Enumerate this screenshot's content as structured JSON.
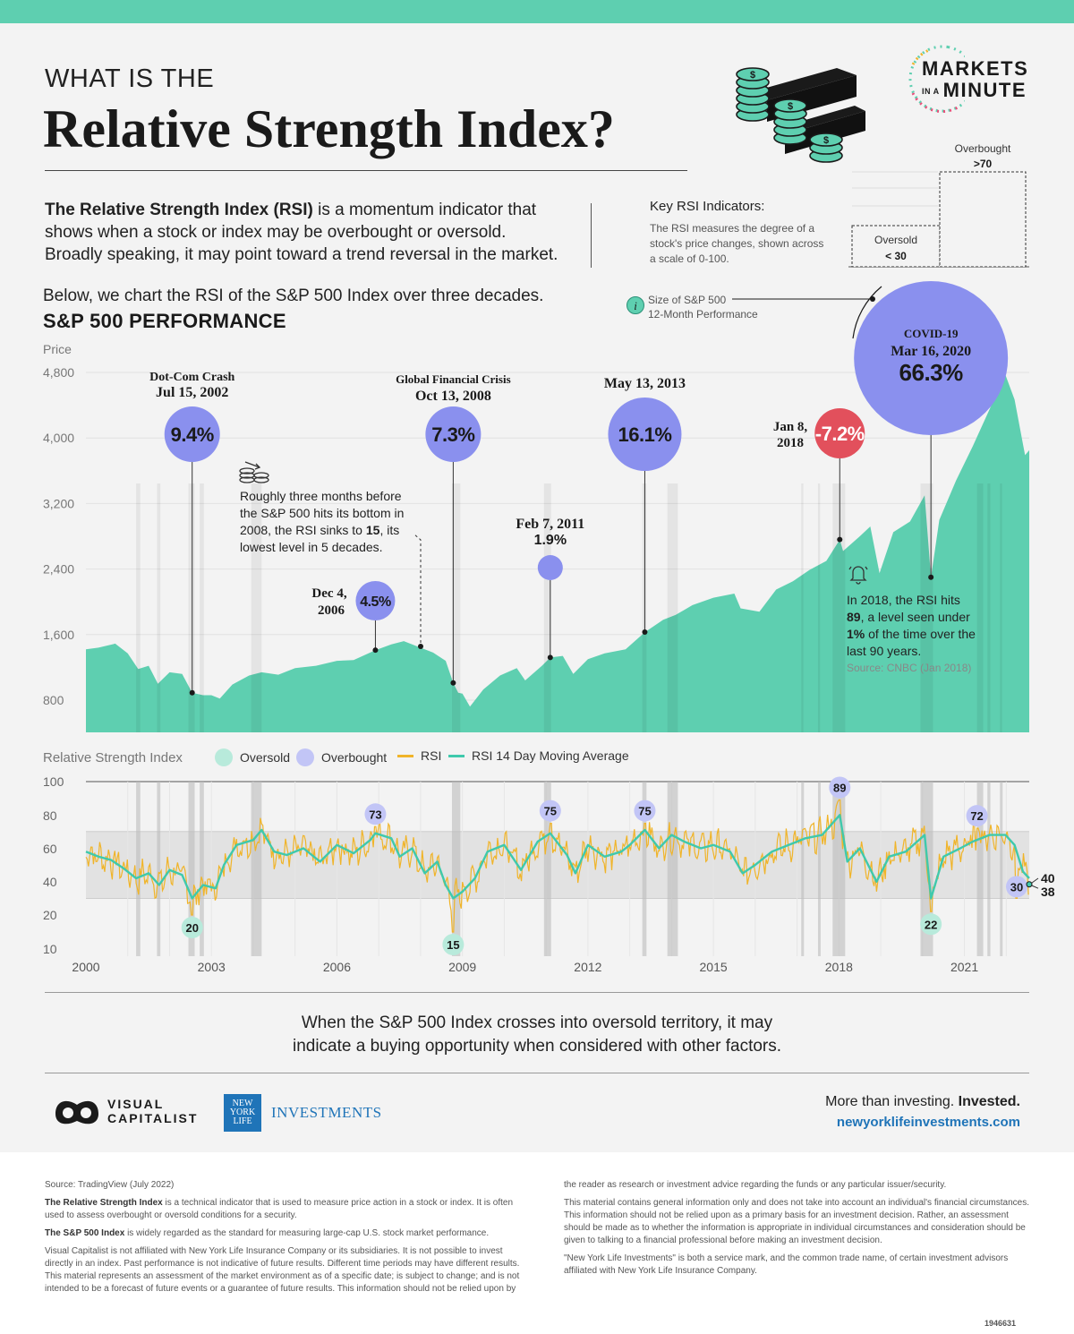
{
  "header": {
    "kicker": "WHAT IS THE",
    "title": "Relative Strength Index?",
    "brand_line1": "MARKETS",
    "brand_small": "IN A",
    "brand_line2": "MINUTE"
  },
  "intro": {
    "bold": "The Relative Strength Index (RSI)",
    "text": " is a momentum indicator that shows when a stock or index may be overbought or oversold. Broadly speaking, it may point toward a trend reversal in the market."
  },
  "key": {
    "title": "Key RSI Indicators:",
    "desc": "The RSI measures the degree of a stock's price changes, shown across a scale of 0-100.",
    "oversold_label": "Oversold",
    "oversold_value": "< 30",
    "overbought_label": "Overbought",
    "overbought_value": ">70"
  },
  "section": {
    "subtitle": "Below, we chart the RSI of the S&P 500 Index over three decades.",
    "chart_title": "S&P 500 PERFORMANCE",
    "size_legend": "Size of S&P 500",
    "size_legend2": "12-Month Performance",
    "price_label": "Price",
    "rsi_label": "Relative Strength Index"
  },
  "legend": {
    "oversold": "Oversold",
    "overbought": "Overbought",
    "rsi": "RSI",
    "rsi_ma": "RSI 14 Day Moving Average"
  },
  "annotations": {
    "gfc_note_1": "Roughly three months before the S&P 500 hits its bottom in 2008, the RSI sinks to ",
    "gfc_note_bold": "15",
    "gfc_note_2": ", its lowest level in 5 decades.",
    "note_2018_1": "In 2018, the RSI hits ",
    "note_2018_b1": "89",
    "note_2018_2": ", a level seen under ",
    "note_2018_b2": "1%",
    "note_2018_3": " of the time over the last 90 years.",
    "note_2018_src": "Source: CNBC (Jan 2018)"
  },
  "bottom": {
    "message_1": "When the S&P 500 Index crosses into oversold territory, it may",
    "message_2": "indicate a buying opportunity when considered with other factors.",
    "vc_1": "VISUAL",
    "vc_2": "CAPITALIST",
    "nyl_box_1": "NEW",
    "nyl_box_2": "YORK",
    "nyl_box_3": "LIFE",
    "nyl_name": "INVESTMENTS",
    "tagline_1": "More than investing. ",
    "tagline_2": "Invested.",
    "url": "newyorklifeinvestments.com"
  },
  "footer": {
    "source": "Source: TradingView (July 2022)",
    "p1_bold": "The Relative Strength Index",
    "p1": " is a technical indicator that is used to measure price action in a stock or index. It is often used to assess overbought or oversold conditions for a security.",
    "p2_bold": "The S&P 500 Index",
    "p2": " is widely regarded as the standard for measuring large-cap U.S. stock market performance.",
    "p3": "Visual Capitalist is not affiliated with New York Life Insurance Company or its subsidiaries. It is not possible to invest directly in an index. Past performance is not indicative of future results. Different time periods may have different results. This material represents an assessment of the market environment as of a specific date; is subject to change; and is not intended to be a forecast of future events or a guarantee of future results. This information should not be relied upon by",
    "r1": "the reader as research or investment advice regarding the funds or any particular issuer/security.",
    "r2": "This material contains general information only and does not take into account an individual's financial circumstances. This information should not be relied upon as a primary basis for an investment decision. Rather, an assessment should be made as to whether the information is appropriate in individual circumstances and consideration should be given to talking to a financial professional before making an investment decision.",
    "r3": "\"New York Life Investments\" is both a service mark, and the common trade name, of certain investment advisors affiliated with New York Life Insurance Company.",
    "code": "1946631"
  },
  "colors": {
    "teal": "#5ecfb0",
    "purple": "#8a90ee",
    "red": "#e2505c",
    "rsi_line": "#f0b429",
    "ma_line": "#3fc9ac",
    "oversold_dot": "#b8eadb",
    "overbought_dot": "#c2c5f6"
  },
  "chart_data": [
    {
      "type": "area",
      "title": "S&P 500 PERFORMANCE",
      "ylabel": "Price",
      "yticks": [
        800,
        1600,
        2400,
        3200,
        4000,
        4800
      ],
      "ylim": [
        400,
        4900
      ],
      "xlim": [
        2000,
        2022.55
      ],
      "series": [
        {
          "points": [
            [
              2000.0,
              1420
            ],
            [
              2000.3,
              1440
            ],
            [
              2000.7,
              1490
            ],
            [
              2001.0,
              1370
            ],
            [
              2001.25,
              1180
            ],
            [
              2001.5,
              1220
            ],
            [
              2001.72,
              1000
            ],
            [
              2002.0,
              1140
            ],
            [
              2002.3,
              1120
            ],
            [
              2002.54,
              890
            ],
            [
              2002.8,
              860
            ],
            [
              2003.0,
              860
            ],
            [
              2003.2,
              820
            ],
            [
              2003.5,
              990
            ],
            [
              2003.9,
              1100
            ],
            [
              2004.2,
              1140
            ],
            [
              2004.6,
              1110
            ],
            [
              2005.0,
              1190
            ],
            [
              2005.5,
              1220
            ],
            [
              2006.0,
              1280
            ],
            [
              2006.4,
              1290
            ],
            [
              2006.92,
              1410
            ],
            [
              2007.3,
              1480
            ],
            [
              2007.6,
              1520
            ],
            [
              2007.9,
              1460
            ],
            [
              2008.3,
              1380
            ],
            [
              2008.6,
              1280
            ],
            [
              2008.78,
              1010
            ],
            [
              2008.9,
              890
            ],
            [
              2009.0,
              880
            ],
            [
              2009.18,
              720
            ],
            [
              2009.5,
              930
            ],
            [
              2009.9,
              1100
            ],
            [
              2010.3,
              1190
            ],
            [
              2010.5,
              1040
            ],
            [
              2010.9,
              1220
            ],
            [
              2011.1,
              1320
            ],
            [
              2011.4,
              1340
            ],
            [
              2011.65,
              1120
            ],
            [
              2012.0,
              1300
            ],
            [
              2012.4,
              1370
            ],
            [
              2012.9,
              1420
            ],
            [
              2013.36,
              1630
            ],
            [
              2013.8,
              1780
            ],
            [
              2014.1,
              1840
            ],
            [
              2014.5,
              1960
            ],
            [
              2015.0,
              2050
            ],
            [
              2015.5,
              2100
            ],
            [
              2015.65,
              1920
            ],
            [
              2016.1,
              1880
            ],
            [
              2016.5,
              2150
            ],
            [
              2016.9,
              2250
            ],
            [
              2017.3,
              2390
            ],
            [
              2017.7,
              2500
            ],
            [
              2018.02,
              2760
            ],
            [
              2018.1,
              2620
            ],
            [
              2018.5,
              2800
            ],
            [
              2018.75,
              2920
            ],
            [
              2018.97,
              2350
            ],
            [
              2019.3,
              2850
            ],
            [
              2019.7,
              2980
            ],
            [
              2020.05,
              3300
            ],
            [
              2020.2,
              2300
            ],
            [
              2020.4,
              3000
            ],
            [
              2020.8,
              3480
            ],
            [
              2021.2,
              3900
            ],
            [
              2021.6,
              4350
            ],
            [
              2021.98,
              4770
            ],
            [
              2022.2,
              4470
            ],
            [
              2022.45,
              3790
            ],
            [
              2022.55,
              3850
            ]
          ]
        }
      ],
      "bubbles": [
        {
          "date": "Jul 15, 2002",
          "x": 2002.54,
          "y": 890,
          "label": "Dot-Com Crash",
          "perf": 9.4,
          "perf_text": "9.4%"
        },
        {
          "date": "Dec 4, 2006",
          "date_l1": "Dec 4,",
          "date_l2": "2006",
          "x": 2006.92,
          "y": 1410,
          "perf": 4.5,
          "perf_text": "4.5%"
        },
        {
          "date": "Oct 13, 2008",
          "x": 2008.78,
          "y": 1010,
          "label": "Global Financial Crisis",
          "perf": 7.3,
          "perf_text": "7.3%"
        },
        {
          "date": "Feb 7, 2011",
          "x": 2011.1,
          "y": 1320,
          "perf": 1.9,
          "perf_text": "1.9%"
        },
        {
          "date": "May 13, 2013",
          "x": 2013.36,
          "y": 1630,
          "perf": 16.1,
          "perf_text": "16.1%"
        },
        {
          "date": "Jan 8, 2018",
          "date_l1": "Jan 8,",
          "date_l2": "2018",
          "x": 2018.02,
          "y": 2760,
          "perf": -7.2,
          "perf_text": "-7.2%"
        },
        {
          "date": "Mar 16, 2020",
          "x": 2020.2,
          "y": 2300,
          "label": "COVID-19",
          "perf": 66.3,
          "perf_text": "66.3%"
        }
      ]
    },
    {
      "type": "line",
      "title": "Relative Strength Index",
      "yticks": [
        10,
        20,
        40,
        60,
        80,
        100
      ],
      "xticks": [
        "2000",
        "2003",
        "2006",
        "2009",
        "2012",
        "2015",
        "2018",
        "2021"
      ],
      "overbought_threshold": 70,
      "oversold_threshold": 30,
      "series": [
        {
          "name": "RSI",
          "color": "#f0b429"
        },
        {
          "name": "RSI 14 Day Moving Average",
          "color": "#3fc9ac",
          "points": [
            [
              2000.0,
              58
            ],
            [
              2000.3,
              55
            ],
            [
              2000.6,
              53
            ],
            [
              2000.9,
              48
            ],
            [
              2001.2,
              42
            ],
            [
              2001.5,
              45
            ],
            [
              2001.75,
              38
            ],
            [
              2002.0,
              47
            ],
            [
              2002.3,
              44
            ],
            [
              2002.54,
              30
            ],
            [
              2002.8,
              38
            ],
            [
              2003.1,
              36
            ],
            [
              2003.3,
              50
            ],
            [
              2003.6,
              62
            ],
            [
              2004.0,
              65
            ],
            [
              2004.2,
              71
            ],
            [
              2004.5,
              58
            ],
            [
              2004.8,
              56
            ],
            [
              2005.2,
              60
            ],
            [
              2005.6,
              52
            ],
            [
              2006.0,
              62
            ],
            [
              2006.4,
              57
            ],
            [
              2006.8,
              65
            ],
            [
              2006.92,
              69
            ],
            [
              2007.3,
              66
            ],
            [
              2007.5,
              55
            ],
            [
              2007.8,
              60
            ],
            [
              2008.1,
              45
            ],
            [
              2008.4,
              52
            ],
            [
              2008.6,
              38
            ],
            [
              2008.78,
              30
            ],
            [
              2009.0,
              34
            ],
            [
              2009.3,
              42
            ],
            [
              2009.6,
              58
            ],
            [
              2010.0,
              62
            ],
            [
              2010.4,
              47
            ],
            [
              2010.8,
              64
            ],
            [
              2011.1,
              69
            ],
            [
              2011.5,
              56
            ],
            [
              2011.7,
              45
            ],
            [
              2012.0,
              62
            ],
            [
              2012.4,
              55
            ],
            [
              2012.8,
              58
            ],
            [
              2013.0,
              62
            ],
            [
              2013.36,
              71
            ],
            [
              2013.7,
              60
            ],
            [
              2014.0,
              68
            ],
            [
              2014.3,
              64
            ],
            [
              2014.7,
              60
            ],
            [
              2015.0,
              62
            ],
            [
              2015.4,
              58
            ],
            [
              2015.7,
              45
            ],
            [
              2016.0,
              50
            ],
            [
              2016.4,
              58
            ],
            [
              2016.8,
              62
            ],
            [
              2017.2,
              66
            ],
            [
              2017.6,
              68
            ],
            [
              2018.02,
              80
            ],
            [
              2018.2,
              52
            ],
            [
              2018.5,
              60
            ],
            [
              2018.9,
              40
            ],
            [
              2019.2,
              55
            ],
            [
              2019.6,
              58
            ],
            [
              2020.05,
              68
            ],
            [
              2020.2,
              30
            ],
            [
              2020.5,
              55
            ],
            [
              2020.9,
              60
            ],
            [
              2021.2,
              64
            ],
            [
              2021.6,
              68
            ],
            [
              2021.98,
              68
            ],
            [
              2022.2,
              62
            ],
            [
              2022.4,
              46
            ],
            [
              2022.55,
              42
            ]
          ]
        }
      ],
      "callouts_overbought": [
        {
          "x": 2006.92,
          "value": 73
        },
        {
          "x": 2011.1,
          "value": 75
        },
        {
          "x": 2013.36,
          "value": 75
        },
        {
          "x": 2018.02,
          "value": 89
        },
        {
          "x": 2021.3,
          "value": 72
        }
      ],
      "callouts_oversold": [
        {
          "x": 2002.54,
          "value": 20
        },
        {
          "x": 2008.78,
          "value": 15
        },
        {
          "x": 2020.2,
          "value": 22
        },
        {
          "x": 2022.25,
          "value": 30
        }
      ],
      "end_values": [
        40,
        38
      ],
      "shaded_periods": [
        [
          2001.2,
          2001.3
        ],
        [
          2001.7,
          2001.78
        ],
        [
          2002.45,
          2002.6
        ],
        [
          2002.72,
          2002.82
        ],
        [
          2003.95,
          2004.2
        ],
        [
          2008.75,
          2008.95
        ],
        [
          2010.95,
          2011.12
        ],
        [
          2013.3,
          2013.4
        ],
        [
          2013.9,
          2014.15
        ],
        [
          2017.1,
          2017.15
        ],
        [
          2017.5,
          2017.55
        ],
        [
          2017.85,
          2018.15
        ],
        [
          2019.95,
          2020.25
        ],
        [
          2021.3,
          2021.45
        ],
        [
          2021.55,
          2021.62
        ],
        [
          2021.85,
          2021.9
        ]
      ]
    }
  ]
}
